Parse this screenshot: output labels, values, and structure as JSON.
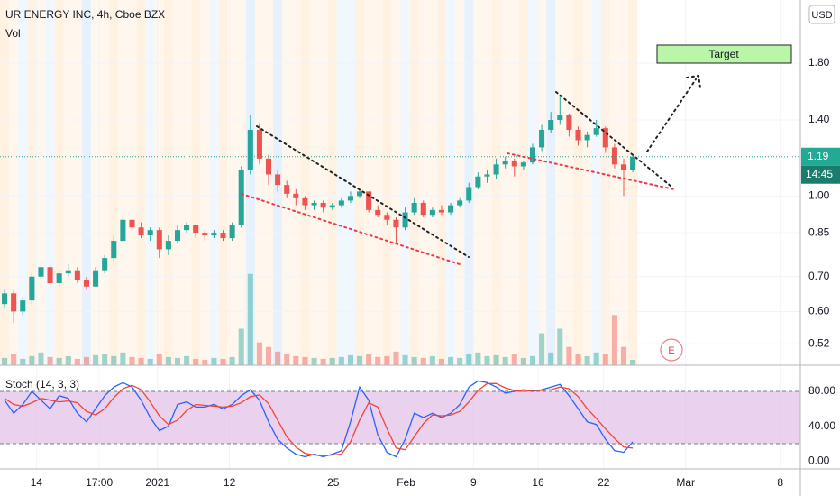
{
  "chart_data": {
    "type": "candlestick",
    "title": "UR ENERGY INC, 4h, Cboe BZX",
    "volume_label": "Vol",
    "currency": "USD",
    "log_scale": true,
    "grid": true,
    "up_color": "#26a69a",
    "down_color": "#ef5350",
    "ylim": [
      0.473,
      2.38
    ],
    "yticks": [
      {
        "value": 1.8,
        "label": "1.80"
      },
      {
        "value": 1.4,
        "label": "1.40"
      },
      {
        "value": 1.0,
        "label": "1.00"
      },
      0.85,
      {
        "value": 0.7,
        "label": "0.70"
      },
      {
        "value": 0.6,
        "label": "0.60"
      },
      0.52
    ],
    "xlim": [
      -0.5,
      87.4
    ],
    "xticks": [
      {
        "value": 3.5,
        "label": "14"
      },
      {
        "value": 10.4,
        "label": "17:00"
      },
      {
        "value": 16.8,
        "label": "2021"
      },
      {
        "value": 24.7,
        "label": "12"
      },
      {
        "value": 36.1,
        "label": "25"
      },
      {
        "value": 44.1,
        "label": "Feb"
      },
      {
        "value": 51.5,
        "label": "9"
      },
      {
        "value": 58.6,
        "label": "16"
      },
      {
        "value": 65.8,
        "label": "22"
      },
      {
        "value": 74.8,
        "label": "Mar"
      },
      {
        "value": 85.2,
        "label": "8"
      }
    ],
    "last_price": 1.19,
    "countdown": "14:45",
    "target_label": "Target",
    "earnings_label": "E",
    "candles": {
      "open": [
        0.62,
        0.65,
        0.6,
        0.63,
        0.7,
        0.73,
        0.68,
        0.71,
        0.72,
        0.69,
        0.67,
        0.72,
        0.76,
        0.82,
        0.9,
        0.87,
        0.84,
        0.86,
        0.79,
        0.82,
        0.86,
        0.88,
        0.85,
        0.84,
        0.85,
        0.83,
        0.88,
        1.12,
        1.34,
        1.18,
        1.1,
        1.05,
        1.01,
        0.99,
        0.96,
        0.97,
        0.95,
        0.96,
        0.98,
        1.0,
        1.02,
        0.94,
        0.92,
        0.9,
        0.87,
        0.93,
        0.97,
        0.92,
        0.94,
        0.93,
        0.96,
        0.98,
        1.04,
        1.09,
        1.1,
        1.15,
        1.17,
        1.14,
        1.16,
        1.24,
        1.34,
        1.4,
        1.43,
        1.34,
        1.28,
        1.31,
        1.35,
        1.24,
        1.15,
        1.12
      ],
      "high": [
        0.66,
        0.66,
        0.64,
        0.71,
        0.75,
        0.74,
        0.72,
        0.74,
        0.73,
        0.7,
        0.73,
        0.77,
        0.84,
        0.92,
        0.92,
        0.89,
        0.87,
        0.87,
        0.84,
        0.88,
        0.89,
        0.88,
        0.86,
        0.86,
        0.86,
        0.89,
        1.14,
        1.43,
        1.38,
        1.2,
        1.12,
        1.07,
        1.03,
        1.0,
        0.98,
        0.98,
        0.97,
        0.99,
        1.02,
        1.03,
        1.02,
        0.96,
        0.93,
        0.91,
        0.95,
        0.99,
        0.98,
        0.95,
        0.96,
        0.97,
        0.99,
        1.06,
        1.11,
        1.12,
        1.18,
        1.19,
        1.18,
        1.17,
        1.26,
        1.37,
        1.45,
        1.56,
        1.44,
        1.36,
        1.33,
        1.4,
        1.36,
        1.26,
        1.18,
        1.2
      ],
      "low": [
        0.61,
        0.57,
        0.59,
        0.62,
        0.69,
        0.67,
        0.67,
        0.7,
        0.68,
        0.66,
        0.67,
        0.71,
        0.75,
        0.81,
        0.85,
        0.83,
        0.82,
        0.76,
        0.77,
        0.81,
        0.85,
        0.83,
        0.82,
        0.83,
        0.82,
        0.82,
        0.87,
        1.1,
        1.15,
        1.05,
        1.02,
        0.99,
        0.96,
        0.94,
        0.94,
        0.93,
        0.94,
        0.95,
        0.97,
        0.99,
        0.93,
        0.91,
        0.88,
        0.81,
        0.86,
        0.92,
        0.91,
        0.91,
        0.92,
        0.92,
        0.95,
        0.97,
        1.03,
        1.06,
        1.08,
        1.13,
        1.09,
        1.12,
        1.15,
        1.22,
        1.32,
        1.37,
        1.3,
        1.25,
        1.24,
        1.3,
        1.21,
        1.13,
        1.0,
        1.11
      ],
      "close": [
        0.65,
        0.6,
        0.63,
        0.7,
        0.73,
        0.68,
        0.71,
        0.72,
        0.69,
        0.67,
        0.72,
        0.76,
        0.82,
        0.9,
        0.87,
        0.84,
        0.86,
        0.79,
        0.82,
        0.86,
        0.88,
        0.85,
        0.84,
        0.85,
        0.83,
        0.88,
        1.12,
        1.34,
        1.18,
        1.1,
        1.05,
        1.01,
        0.99,
        0.96,
        0.97,
        0.95,
        0.96,
        0.98,
        1.0,
        1.02,
        0.94,
        0.92,
        0.9,
        0.87,
        0.93,
        0.97,
        0.92,
        0.94,
        0.93,
        0.96,
        0.98,
        1.04,
        1.09,
        1.1,
        1.15,
        1.17,
        1.14,
        1.16,
        1.24,
        1.34,
        1.4,
        1.43,
        1.34,
        1.28,
        1.31,
        1.35,
        1.24,
        1.15,
        1.12,
        1.19
      ]
    },
    "volume": {
      "ylim": [
        0,
        400
      ],
      "values": [
        8,
        12,
        7,
        10,
        14,
        9,
        8,
        10,
        7,
        9,
        11,
        12,
        10,
        14,
        9,
        8,
        7,
        12,
        9,
        8,
        10,
        7,
        6,
        8,
        7,
        9,
        40,
        100,
        25,
        20,
        15,
        12,
        10,
        9,
        8,
        7,
        8,
        9,
        11,
        10,
        12,
        9,
        10,
        15,
        11,
        9,
        8,
        10,
        7,
        9,
        8,
        12,
        14,
        10,
        11,
        9,
        12,
        8,
        10,
        35,
        14,
        40,
        20,
        12,
        10,
        14,
        12,
        55,
        20,
        6
      ]
    },
    "stoch": {
      "title": "Stoch (14, 3, 3)",
      "ylim": [
        -9,
        110
      ],
      "yticks": [
        {
          "value": 80,
          "label": "80.00"
        },
        {
          "value": 40,
          "label": "40.00"
        },
        {
          "value": 0,
          "label": "0.00"
        }
      ],
      "bands": [
        20,
        80
      ],
      "band_color": "#e1bee7",
      "series": [
        {
          "color": "#2962ff",
          "values": [
            70,
            55,
            65,
            80,
            70,
            60,
            75,
            72,
            55,
            45,
            60,
            75,
            85,
            90,
            85,
            70,
            50,
            35,
            40,
            65,
            68,
            62,
            62,
            65,
            60,
            65,
            75,
            82,
            70,
            45,
            25,
            15,
            8,
            5,
            8,
            5,
            8,
            12,
            45,
            85,
            70,
            30,
            10,
            5,
            25,
            55,
            50,
            55,
            50,
            55,
            65,
            85,
            92,
            90,
            85,
            78,
            80,
            82,
            80,
            82,
            85,
            88,
            75,
            60,
            45,
            42,
            25,
            12,
            10,
            22
          ]
        },
        {
          "color": "#f44336",
          "values": [
            72,
            65,
            63,
            67,
            72,
            70,
            68,
            69,
            67,
            57,
            53,
            60,
            73,
            83,
            87,
            82,
            68,
            52,
            42,
            47,
            58,
            65,
            64,
            63,
            62,
            63,
            67,
            74,
            76,
            66,
            47,
            28,
            16,
            9,
            7,
            6,
            7,
            8,
            22,
            47,
            67,
            62,
            37,
            15,
            13,
            28,
            43,
            53,
            52,
            53,
            57,
            68,
            81,
            89,
            89,
            84,
            81,
            80,
            81,
            81,
            82,
            85,
            83,
            74,
            60,
            49,
            37,
            26,
            16,
            15
          ]
        }
      ]
    }
  }
}
